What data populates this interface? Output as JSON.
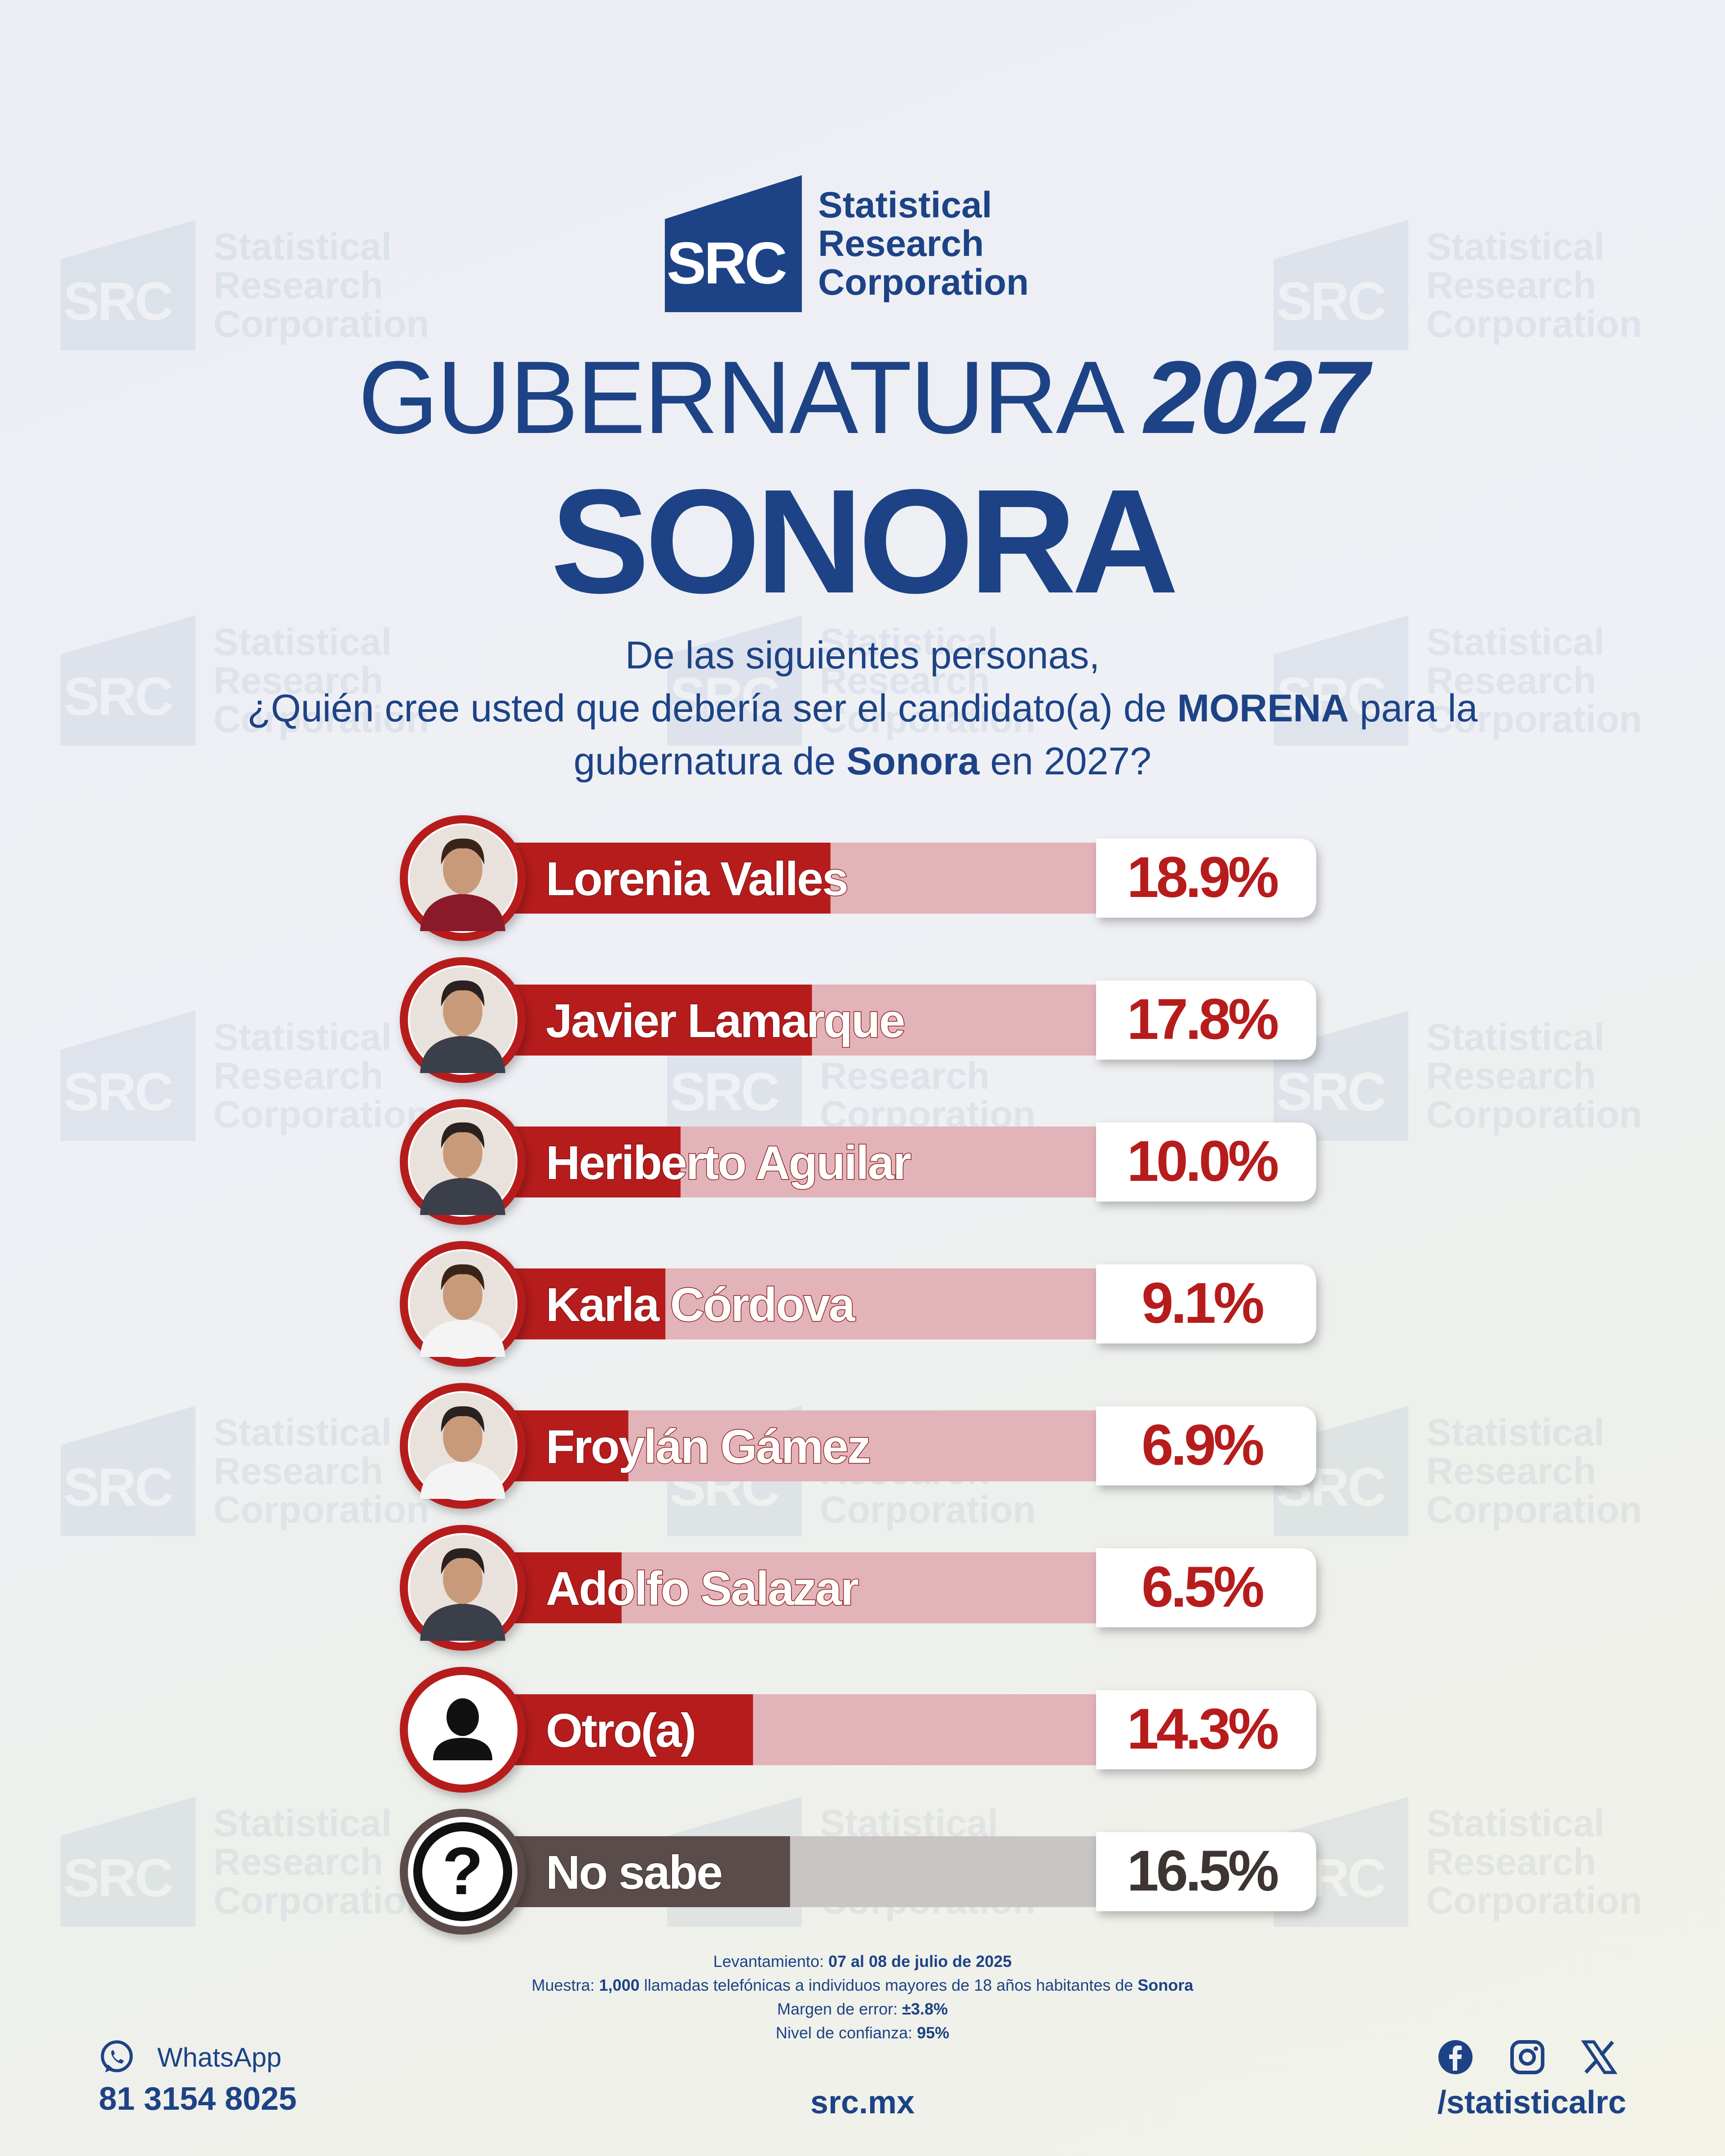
{
  "brand": {
    "logo_mark": "SRC",
    "name": "Statistical\nResearch\nCorporation",
    "color": "#1d4386"
  },
  "title": {
    "line1_light": "GUBERNATURA",
    "line1_bold": "2027",
    "line2": "SONORA"
  },
  "question": {
    "line1": "De las siguientes personas,",
    "line2_pre": "¿Quién cree usted que debería ser el candidato(a) de",
    "line2_bold": "MORENA",
    "line2_post": "para la",
    "line3_pre": "gubernatura de",
    "line3_bold": "Sonora",
    "line3_post": "en 2027?"
  },
  "chart_data": {
    "type": "bar",
    "orientation": "horizontal",
    "categories": [
      "Lorenia Valles",
      "Javier Lamarque",
      "Heriberto Aguilar",
      "Karla Córdova",
      "Froylán Gámez",
      "Adolfo Salazar",
      "Otro(a)",
      "No sabe"
    ],
    "values": [
      18.9,
      17.8,
      10.0,
      9.1,
      6.9,
      6.5,
      14.3,
      16.5
    ],
    "labels": [
      "18.9%",
      "17.8%",
      "10.0%",
      "9.1%",
      "6.9%",
      "6.5%",
      "14.3%",
      "16.5%"
    ],
    "icons": [
      "candidate-photo",
      "candidate-photo",
      "candidate-photo",
      "candidate-photo",
      "candidate-photo",
      "candidate-photo",
      "person-icon",
      "question-icon"
    ],
    "colors": {
      "bar": "#b71c1c",
      "track": "#e2b3b8",
      "value_text": "#b71c1c",
      "no_sabe_bar": "#5a4c4a",
      "no_sabe_track": "#c8c5c4",
      "no_sabe_text": "#3e3533"
    }
  },
  "methodology": {
    "l1_label": "Levantamiento:",
    "l1_value": "07 al 08 de julio de 2025",
    "l2_label": "Muestra:",
    "l2_value": "1,000",
    "l2_mid": "llamadas telefónicas a individuos mayores de 18 años habitantes de",
    "l2_place": "Sonora",
    "l3_label": "Margen de error:",
    "l3_value": "±3.8%",
    "l4_label": "Nivel de confianza:",
    "l4_value": "95%"
  },
  "footer": {
    "whatsapp_label": "WhatsApp",
    "phone": "81 3154 8025",
    "website": "src.mx",
    "social_icons": [
      "facebook-icon",
      "instagram-icon",
      "x-icon"
    ],
    "handle": "/statisticalrc"
  }
}
